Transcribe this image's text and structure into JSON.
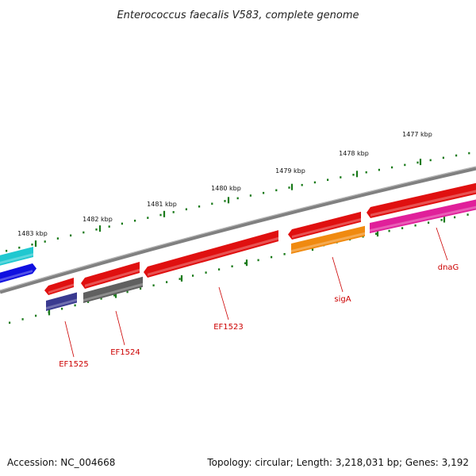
{
  "title": "Enterococcus faecalis V583, complete genome",
  "ruler": {
    "labels": [
      "1477 kbp",
      "1478 kbp",
      "1479 kbp",
      "1480 kbp",
      "1481 kbp",
      "1482 kbp",
      "1483 kbp"
    ],
    "tick_color": "#1a7a1a"
  },
  "backbone_color": "#808080",
  "features": [
    {
      "name": "feature-cyan",
      "color": "#20c8d0",
      "strand": "forward"
    },
    {
      "name": "feature-blue",
      "color": "#1010e0",
      "strand": "forward"
    },
    {
      "name": "feature-red-1",
      "color": "#e01010",
      "strand": "forward"
    },
    {
      "name": "feature-red-2",
      "color": "#e01010",
      "strand": "forward"
    },
    {
      "name": "feature-red-3",
      "color": "#e01010",
      "strand": "forward"
    },
    {
      "name": "feature-red-4",
      "color": "#e01010",
      "strand": "forward"
    },
    {
      "name": "feature-red-5",
      "color": "#e01010",
      "strand": "forward"
    },
    {
      "name": "feature-navy",
      "color": "#3a3a90",
      "strand": "reverse"
    },
    {
      "name": "feature-gray",
      "color": "#606060",
      "strand": "reverse"
    },
    {
      "name": "feature-orange",
      "color": "#f08a10",
      "strand": "reverse"
    },
    {
      "name": "feature-magenta",
      "color": "#e0209a",
      "strand": "reverse"
    }
  ],
  "gene_labels": [
    "EF1525",
    "EF1524",
    "EF1523",
    "sigA",
    "dnaG"
  ],
  "gene_label_color": "#cc0000",
  "footer": {
    "accession": "Accession: NC_004668",
    "topology": "Topology: circular; Length: 3,218,031 bp; Genes: 3,192"
  }
}
